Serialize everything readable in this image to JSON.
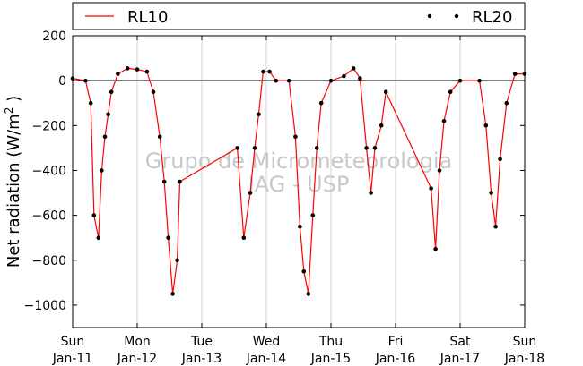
{
  "chart_data": {
    "type": "line",
    "ylabel_main": "Net radiation (W/m",
    "ylabel_sup": "2",
    "ylabel_end": " )",
    "ylim": [
      -1100,
      200
    ],
    "yticks": [
      200,
      0,
      -200,
      -400,
      -600,
      -800,
      -1000
    ],
    "ytick_labels": [
      "200",
      "0",
      "−200",
      "−400",
      "−600",
      "−800",
      "−1000"
    ],
    "xlim": [
      0,
      7
    ],
    "xticks": [
      {
        "x": 0,
        "day": "Sun",
        "date": "Jan-11"
      },
      {
        "x": 1,
        "day": "Mon",
        "date": "Jan-12"
      },
      {
        "x": 2,
        "day": "Tue",
        "date": "Jan-13"
      },
      {
        "x": 3,
        "day": "Wed",
        "date": "Jan-14"
      },
      {
        "x": 4,
        "day": "Thu",
        "date": "Jan-15"
      },
      {
        "x": 5,
        "day": "Fri",
        "date": "Jan-16"
      },
      {
        "x": 6,
        "day": "Sat",
        "date": "Jan-17"
      },
      {
        "x": 7,
        "day": "Sun",
        "date": "Jan-18"
      }
    ],
    "grid": "vertical",
    "legend": {
      "placement": "top",
      "entries": [
        "RL10",
        "RL20"
      ]
    },
    "watermark": [
      "Grupo de Micrometeorologia",
      "IAG - USP"
    ],
    "series": [
      {
        "name": "RL10",
        "style": "line",
        "color": "#ff0000",
        "points": [
          [
            0,
            10
          ],
          [
            0.2,
            0
          ],
          [
            0.28,
            -100
          ],
          [
            0.33,
            -600
          ],
          [
            0.4,
            -700
          ],
          [
            0.45,
            -400
          ],
          [
            0.5,
            -250
          ],
          [
            0.55,
            -150
          ],
          [
            0.6,
            -50
          ],
          [
            0.7,
            30
          ],
          [
            0.85,
            55
          ],
          [
            1.0,
            50
          ],
          [
            1.15,
            40
          ],
          [
            1.25,
            -50
          ],
          [
            1.35,
            -250
          ],
          [
            1.42,
            -450
          ],
          [
            1.48,
            -700
          ],
          [
            1.55,
            -950
          ],
          [
            1.62,
            -800
          ],
          [
            1.66,
            -450
          ],
          [
            2.55,
            -300
          ],
          [
            2.65,
            -700
          ],
          [
            2.75,
            -500
          ],
          [
            2.82,
            -300
          ],
          [
            2.88,
            -150
          ],
          [
            2.95,
            40
          ],
          [
            3.05,
            40
          ],
          [
            3.15,
            0
          ],
          [
            3.35,
            0
          ],
          [
            3.45,
            -250
          ],
          [
            3.52,
            -650
          ],
          [
            3.58,
            -850
          ],
          [
            3.65,
            -950
          ],
          [
            3.72,
            -600
          ],
          [
            3.78,
            -300
          ],
          [
            3.85,
            -100
          ],
          [
            4.0,
            0
          ],
          [
            4.2,
            20
          ],
          [
            4.35,
            55
          ],
          [
            4.45,
            10
          ],
          [
            4.55,
            -300
          ],
          [
            4.62,
            -500
          ],
          [
            4.68,
            -300
          ],
          [
            4.78,
            -200
          ],
          [
            4.85,
            -50
          ],
          [
            5.55,
            -480
          ],
          [
            5.62,
            -750
          ],
          [
            5.68,
            -400
          ],
          [
            5.75,
            -180
          ],
          [
            5.85,
            -50
          ],
          [
            6.0,
            0
          ],
          [
            6.3,
            0
          ],
          [
            6.4,
            -200
          ],
          [
            6.48,
            -500
          ],
          [
            6.55,
            -650
          ],
          [
            6.62,
            -350
          ],
          [
            6.72,
            -100
          ],
          [
            6.85,
            30
          ],
          [
            7.0,
            30
          ]
        ]
      },
      {
        "name": "RL20",
        "style": "markers",
        "color": "#000000",
        "points": [
          [
            0,
            10
          ],
          [
            0.2,
            0
          ],
          [
            0.28,
            -100
          ],
          [
            0.33,
            -600
          ],
          [
            0.4,
            -700
          ],
          [
            0.45,
            -400
          ],
          [
            0.5,
            -250
          ],
          [
            0.55,
            -150
          ],
          [
            0.6,
            -50
          ],
          [
            0.7,
            30
          ],
          [
            0.85,
            55
          ],
          [
            1.0,
            50
          ],
          [
            1.15,
            40
          ],
          [
            1.25,
            -50
          ],
          [
            1.35,
            -250
          ],
          [
            1.42,
            -450
          ],
          [
            1.48,
            -700
          ],
          [
            1.55,
            -950
          ],
          [
            1.62,
            -800
          ],
          [
            1.66,
            -450
          ],
          [
            2.55,
            -300
          ],
          [
            2.65,
            -700
          ],
          [
            2.75,
            -500
          ],
          [
            2.82,
            -300
          ],
          [
            2.88,
            -150
          ],
          [
            2.95,
            40
          ],
          [
            3.05,
            40
          ],
          [
            3.15,
            0
          ],
          [
            3.35,
            0
          ],
          [
            3.45,
            -250
          ],
          [
            3.52,
            -650
          ],
          [
            3.58,
            -850
          ],
          [
            3.65,
            -950
          ],
          [
            3.72,
            -600
          ],
          [
            3.78,
            -300
          ],
          [
            3.85,
            -100
          ],
          [
            4.0,
            0
          ],
          [
            4.2,
            20
          ],
          [
            4.35,
            55
          ],
          [
            4.45,
            10
          ],
          [
            4.55,
            -300
          ],
          [
            4.62,
            -500
          ],
          [
            4.68,
            -300
          ],
          [
            4.78,
            -200
          ],
          [
            4.85,
            -50
          ],
          [
            5.55,
            -480
          ],
          [
            5.62,
            -750
          ],
          [
            5.68,
            -400
          ],
          [
            5.75,
            -180
          ],
          [
            5.85,
            -50
          ],
          [
            6.0,
            0
          ],
          [
            6.3,
            0
          ],
          [
            6.4,
            -200
          ],
          [
            6.48,
            -500
          ],
          [
            6.55,
            -650
          ],
          [
            6.62,
            -350
          ],
          [
            6.72,
            -100
          ],
          [
            6.85,
            30
          ],
          [
            7.0,
            30
          ]
        ]
      }
    ]
  }
}
